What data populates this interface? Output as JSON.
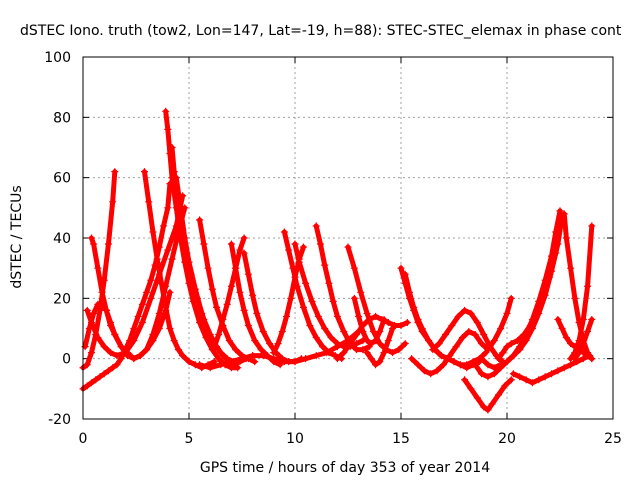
{
  "chart_data": {
    "type": "scatter",
    "title": "dSTEC Iono. truth (tow2, Lon=147, Lat=-19, h=88): STEC-STEC_elemax in phase cont",
    "xlabel": "GPS time / hours of day 353 of year 2014",
    "ylabel": "dSTEC  / TECUs",
    "xlim": [
      0,
      25
    ],
    "ylim": [
      -20,
      100
    ],
    "xticks": [
      0,
      5,
      10,
      15,
      20,
      25
    ],
    "yticks": [
      -20,
      0,
      20,
      40,
      60,
      80,
      100
    ],
    "xtick_labels": [
      "0",
      "5",
      "10",
      "15",
      "20",
      "25"
    ],
    "ytick_labels": [
      "-20",
      "0",
      "20",
      "40",
      "60",
      "80",
      "100"
    ],
    "grid": true,
    "marker": "plus",
    "color": "#ff0000",
    "series": [
      {
        "x": [
          0.0,
          0.2,
          0.4,
          0.6,
          0.8,
          1.0,
          1.2,
          1.4,
          1.6,
          1.8,
          2.0,
          2.2,
          2.4,
          2.6,
          2.8,
          3.0,
          3.2,
          3.4,
          3.6,
          3.8,
          4.0,
          4.1
        ],
        "y": [
          -10,
          -9,
          -8,
          -7,
          -6,
          -5,
          -4,
          -3,
          -2,
          0,
          3,
          6,
          10,
          14,
          18,
          22,
          26,
          31,
          37,
          44,
          50,
          58
        ]
      },
      {
        "x": [
          0.0,
          0.2,
          0.4,
          0.6,
          0.8,
          1.0,
          1.2,
          1.4,
          1.5
        ],
        "y": [
          -3,
          -2,
          2,
          8,
          16,
          26,
          38,
          52,
          62
        ]
      },
      {
        "x": [
          0.1,
          0.3,
          0.5,
          0.7,
          0.9,
          1.1,
          1.3,
          1.5,
          1.8,
          2.1,
          2.4,
          2.7,
          3.0,
          3.3,
          3.6,
          3.9,
          4.1
        ],
        "y": [
          4,
          10,
          15,
          18,
          18,
          16,
          12,
          8,
          4,
          1,
          0,
          1,
          3,
          6,
          10,
          16,
          22
        ]
      },
      {
        "x": [
          0.4,
          0.5,
          0.7,
          0.9,
          1.1,
          1.3,
          1.5,
          1.8,
          2.1,
          2.4,
          2.7,
          3.0,
          3.3,
          3.6,
          3.9,
          4.2,
          4.5,
          4.8
        ],
        "y": [
          40,
          38,
          30,
          22,
          16,
          11,
          8,
          4,
          2,
          0,
          1,
          3,
          8,
          15,
          24,
          33,
          42,
          50
        ]
      },
      {
        "x": [
          0.2,
          0.4,
          0.7,
          1.0,
          1.3,
          1.6,
          2.0,
          2.4,
          2.8,
          3.2,
          3.6,
          4.0,
          4.4,
          4.7
        ],
        "y": [
          16,
          12,
          7,
          4,
          2,
          1,
          2,
          6,
          12,
          20,
          28,
          36,
          44,
          54
        ]
      },
      {
        "x": [
          2.9,
          3.1,
          3.3,
          3.5,
          3.7,
          3.9,
          4.1,
          4.3,
          4.5,
          4.7,
          5.0,
          5.3,
          5.6,
          5.9,
          6.2
        ],
        "y": [
          62,
          52,
          42,
          33,
          25,
          17,
          10,
          6,
          3,
          1,
          -1,
          -2,
          -3,
          -2,
          -1
        ]
      },
      {
        "x": [
          3.9,
          4.0,
          4.1,
          4.2,
          4.4,
          4.6,
          4.8,
          5.0,
          5.2,
          5.5,
          5.8,
          6.1,
          6.4,
          6.7,
          7.0,
          7.3
        ],
        "y": [
          82,
          76,
          68,
          60,
          50,
          40,
          32,
          25,
          19,
          12,
          7,
          3,
          0,
          -2,
          -3,
          -3
        ]
      },
      {
        "x": [
          4.2,
          4.3,
          4.5,
          4.7,
          4.9,
          5.1,
          5.4,
          5.7,
          6.0,
          6.3,
          6.6,
          6.9,
          7.2
        ],
        "y": [
          70,
          62,
          52,
          43,
          35,
          28,
          20,
          13,
          8,
          4,
          1,
          -1,
          -2
        ]
      },
      {
        "x": [
          4.4,
          4.6,
          4.8,
          5.0,
          5.3,
          5.6,
          5.9,
          6.2,
          6.5,
          6.8,
          7.1,
          7.4,
          7.7,
          8.0
        ],
        "y": [
          60,
          50,
          40,
          32,
          23,
          15,
          9,
          5,
          2,
          0,
          -1,
          -1,
          0,
          1
        ]
      },
      {
        "x": [
          5.5,
          6.0,
          6.5,
          7.0,
          7.5,
          8.0,
          8.5,
          9.0,
          9.5,
          10.0,
          10.5,
          11.0,
          11.5,
          12.0,
          12.5,
          13.0
        ],
        "y": [
          -2,
          -3,
          -2,
          -1,
          0,
          1,
          1,
          0,
          -1,
          -1,
          0,
          1,
          2,
          4,
          6,
          9
        ]
      },
      {
        "x": [
          5.5,
          5.7,
          5.9,
          6.1,
          6.3,
          6.6,
          6.9,
          7.2,
          7.5,
          7.8,
          8.1
        ],
        "y": [
          46,
          38,
          30,
          23,
          17,
          11,
          6,
          3,
          1,
          0,
          -1
        ]
      },
      {
        "x": [
          6.2,
          6.4,
          6.6,
          6.8,
          7.0,
          7.2,
          7.4,
          7.6
        ],
        "y": [
          4,
          8,
          13,
          18,
          24,
          30,
          36,
          40
        ]
      },
      {
        "x": [
          7.0,
          7.2,
          7.4,
          7.6,
          7.8,
          8.1,
          8.4,
          8.7,
          9.0,
          9.3
        ],
        "y": [
          38,
          30,
          22,
          16,
          11,
          6,
          3,
          1,
          -1,
          -2
        ]
      },
      {
        "x": [
          7.6,
          7.8,
          8.0,
          8.2,
          8.5,
          8.8,
          9.1,
          9.4,
          9.7,
          10.0,
          10.3
        ],
        "y": [
          35,
          28,
          21,
          15,
          9,
          5,
          2,
          0,
          -1,
          -1,
          0
        ]
      },
      {
        "x": [
          9.0,
          9.2,
          9.4,
          9.6,
          9.8,
          10.0,
          10.2,
          10.4
        ],
        "y": [
          2,
          5,
          9,
          14,
          20,
          27,
          33,
          37
        ]
      },
      {
        "x": [
          9.5,
          9.7,
          9.9,
          10.1,
          10.4,
          10.7,
          11.0,
          11.3,
          11.6,
          11.9,
          12.2
        ],
        "y": [
          42,
          36,
          30,
          24,
          17,
          11,
          7,
          4,
          2,
          1,
          0
        ]
      },
      {
        "x": [
          10.0,
          10.2,
          10.5,
          10.8,
          11.1,
          11.4,
          11.7,
          12.0,
          12.3,
          12.6,
          12.9,
          13.2
        ],
        "y": [
          38,
          32,
          25,
          19,
          14,
          10,
          7,
          5,
          4,
          4,
          5,
          6
        ]
      },
      {
        "x": [
          11.0,
          11.2,
          11.4,
          11.6,
          11.8,
          12.0,
          12.3,
          12.6,
          12.9,
          13.2,
          13.5
        ],
        "y": [
          44,
          38,
          31,
          25,
          19,
          14,
          9,
          5,
          3,
          3,
          4
        ]
      },
      {
        "x": [
          12.0,
          12.3,
          12.6,
          12.9,
          13.2,
          13.5,
          13.8,
          14.1,
          14.4,
          14.7,
          15.0,
          15.3
        ],
        "y": [
          0,
          2,
          5,
          8,
          11,
          13,
          14,
          13,
          12,
          11,
          11,
          12
        ]
      },
      {
        "x": [
          12.5,
          12.8,
          13.1,
          13.4,
          13.7,
          14.0,
          14.3,
          14.6,
          14.9,
          15.2
        ],
        "y": [
          37,
          30,
          22,
          15,
          9,
          5,
          3,
          2,
          3,
          5
        ]
      },
      {
        "x": [
          12.8,
          13.0,
          13.2,
          13.4,
          13.6,
          13.8,
          14.0,
          14.2
        ],
        "y": [
          20,
          14,
          9,
          6,
          5,
          6,
          9,
          13
        ]
      },
      {
        "x": [
          13.4,
          13.6,
          13.8,
          14.0,
          14.2,
          14.4,
          14.6
        ],
        "y": [
          2,
          0,
          -2,
          -1,
          2,
          6,
          10
        ]
      },
      {
        "x": [
          15.0,
          15.2,
          15.4,
          15.6,
          15.8,
          16.0,
          16.3,
          16.6,
          16.9,
          17.2,
          17.5,
          17.8,
          18.1,
          18.4,
          18.7,
          19.0
        ],
        "y": [
          30,
          25,
          20,
          16,
          12,
          9,
          6,
          3,
          1,
          0,
          -1,
          -2,
          -2,
          -1,
          0,
          2
        ]
      },
      {
        "x": [
          15.2,
          15.4,
          15.6,
          15.8,
          16.0,
          16.3,
          16.6,
          16.9,
          17.2,
          17.5,
          17.8,
          18.1,
          18.4,
          18.7
        ],
        "y": [
          28,
          22,
          17,
          13,
          10,
          6,
          3,
          1,
          0,
          -1,
          -2,
          -3,
          -2,
          -1
        ]
      },
      {
        "x": [
          15.5,
          15.8,
          16.1,
          16.4,
          16.7,
          17.0,
          17.3,
          17.6,
          17.9,
          18.2,
          18.5,
          18.8,
          19.1,
          19.4,
          19.7,
          20.0,
          20.2
        ],
        "y": [
          0,
          -2,
          -4,
          -5,
          -4,
          -2,
          1,
          4,
          7,
          9,
          8,
          5,
          3,
          6,
          10,
          15,
          20
        ]
      },
      {
        "x": [
          16.5,
          16.8,
          17.1,
          17.4,
          17.7,
          18.0,
          18.3,
          18.6,
          18.9,
          19.2,
          19.5,
          19.8
        ],
        "y": [
          3,
          5,
          8,
          11,
          14,
          16,
          15,
          12,
          8,
          4,
          1,
          -1
        ]
      },
      {
        "x": [
          18.0,
          18.3,
          18.6,
          18.9,
          19.1,
          19.3,
          19.6,
          19.9,
          20.2
        ],
        "y": [
          -7,
          -10,
          -13,
          -16,
          -17,
          -15,
          -12,
          -9,
          -7
        ]
      },
      {
        "x": [
          18.5,
          18.8,
          19.1,
          19.4,
          19.7,
          20.0,
          20.3,
          20.6,
          20.9,
          21.2,
          21.5,
          21.8,
          22.1,
          22.3,
          22.5
        ],
        "y": [
          -2,
          -5,
          -6,
          -5,
          -3,
          -1,
          1,
          4,
          8,
          13,
          19,
          26,
          34,
          42,
          49
        ]
      },
      {
        "x": [
          18.8,
          19.1,
          19.4,
          19.7,
          20.0,
          20.3,
          20.6,
          20.9,
          21.2,
          21.5,
          21.8,
          22.1,
          22.4,
          22.6
        ],
        "y": [
          0,
          -2,
          -3,
          -2,
          -1,
          1,
          3,
          6,
          10,
          15,
          21,
          29,
          38,
          47
        ]
      },
      {
        "x": [
          19.6,
          19.8,
          20.0,
          20.2,
          20.5,
          20.8,
          21.1,
          21.4,
          21.7,
          22.0,
          22.3
        ],
        "y": [
          0,
          2,
          4,
          5,
          6,
          8,
          11,
          15,
          20,
          27,
          35
        ]
      },
      {
        "x": [
          20.3,
          20.6,
          20.9,
          21.2,
          21.5,
          21.8,
          22.1,
          22.4,
          22.7,
          23.0,
          23.3,
          23.6,
          23.9
        ],
        "y": [
          -5,
          -6,
          -7,
          -8,
          -7,
          -6,
          -5,
          -4,
          -3,
          -2,
          -1,
          0,
          1
        ]
      },
      {
        "x": [
          22.4,
          22.6,
          22.8,
          23.0,
          23.2,
          23.4,
          23.6,
          23.8,
          24.0
        ],
        "y": [
          13,
          10,
          7,
          5,
          4,
          3,
          2,
          1,
          0
        ]
      },
      {
        "x": [
          22.7,
          22.8,
          23.0,
          23.2,
          23.4,
          23.6,
          23.8,
          24.0
        ],
        "y": [
          48,
          40,
          30,
          20,
          12,
          6,
          2,
          0
        ]
      },
      {
        "x": [
          23.0,
          23.2,
          23.4,
          23.6,
          23.8,
          24.0
        ],
        "y": [
          0,
          2,
          6,
          13,
          24,
          44
        ]
      },
      {
        "x": [
          23.2,
          23.4,
          23.6,
          23.8,
          24.0
        ],
        "y": [
          0,
          2,
          5,
          9,
          13
        ]
      }
    ]
  }
}
